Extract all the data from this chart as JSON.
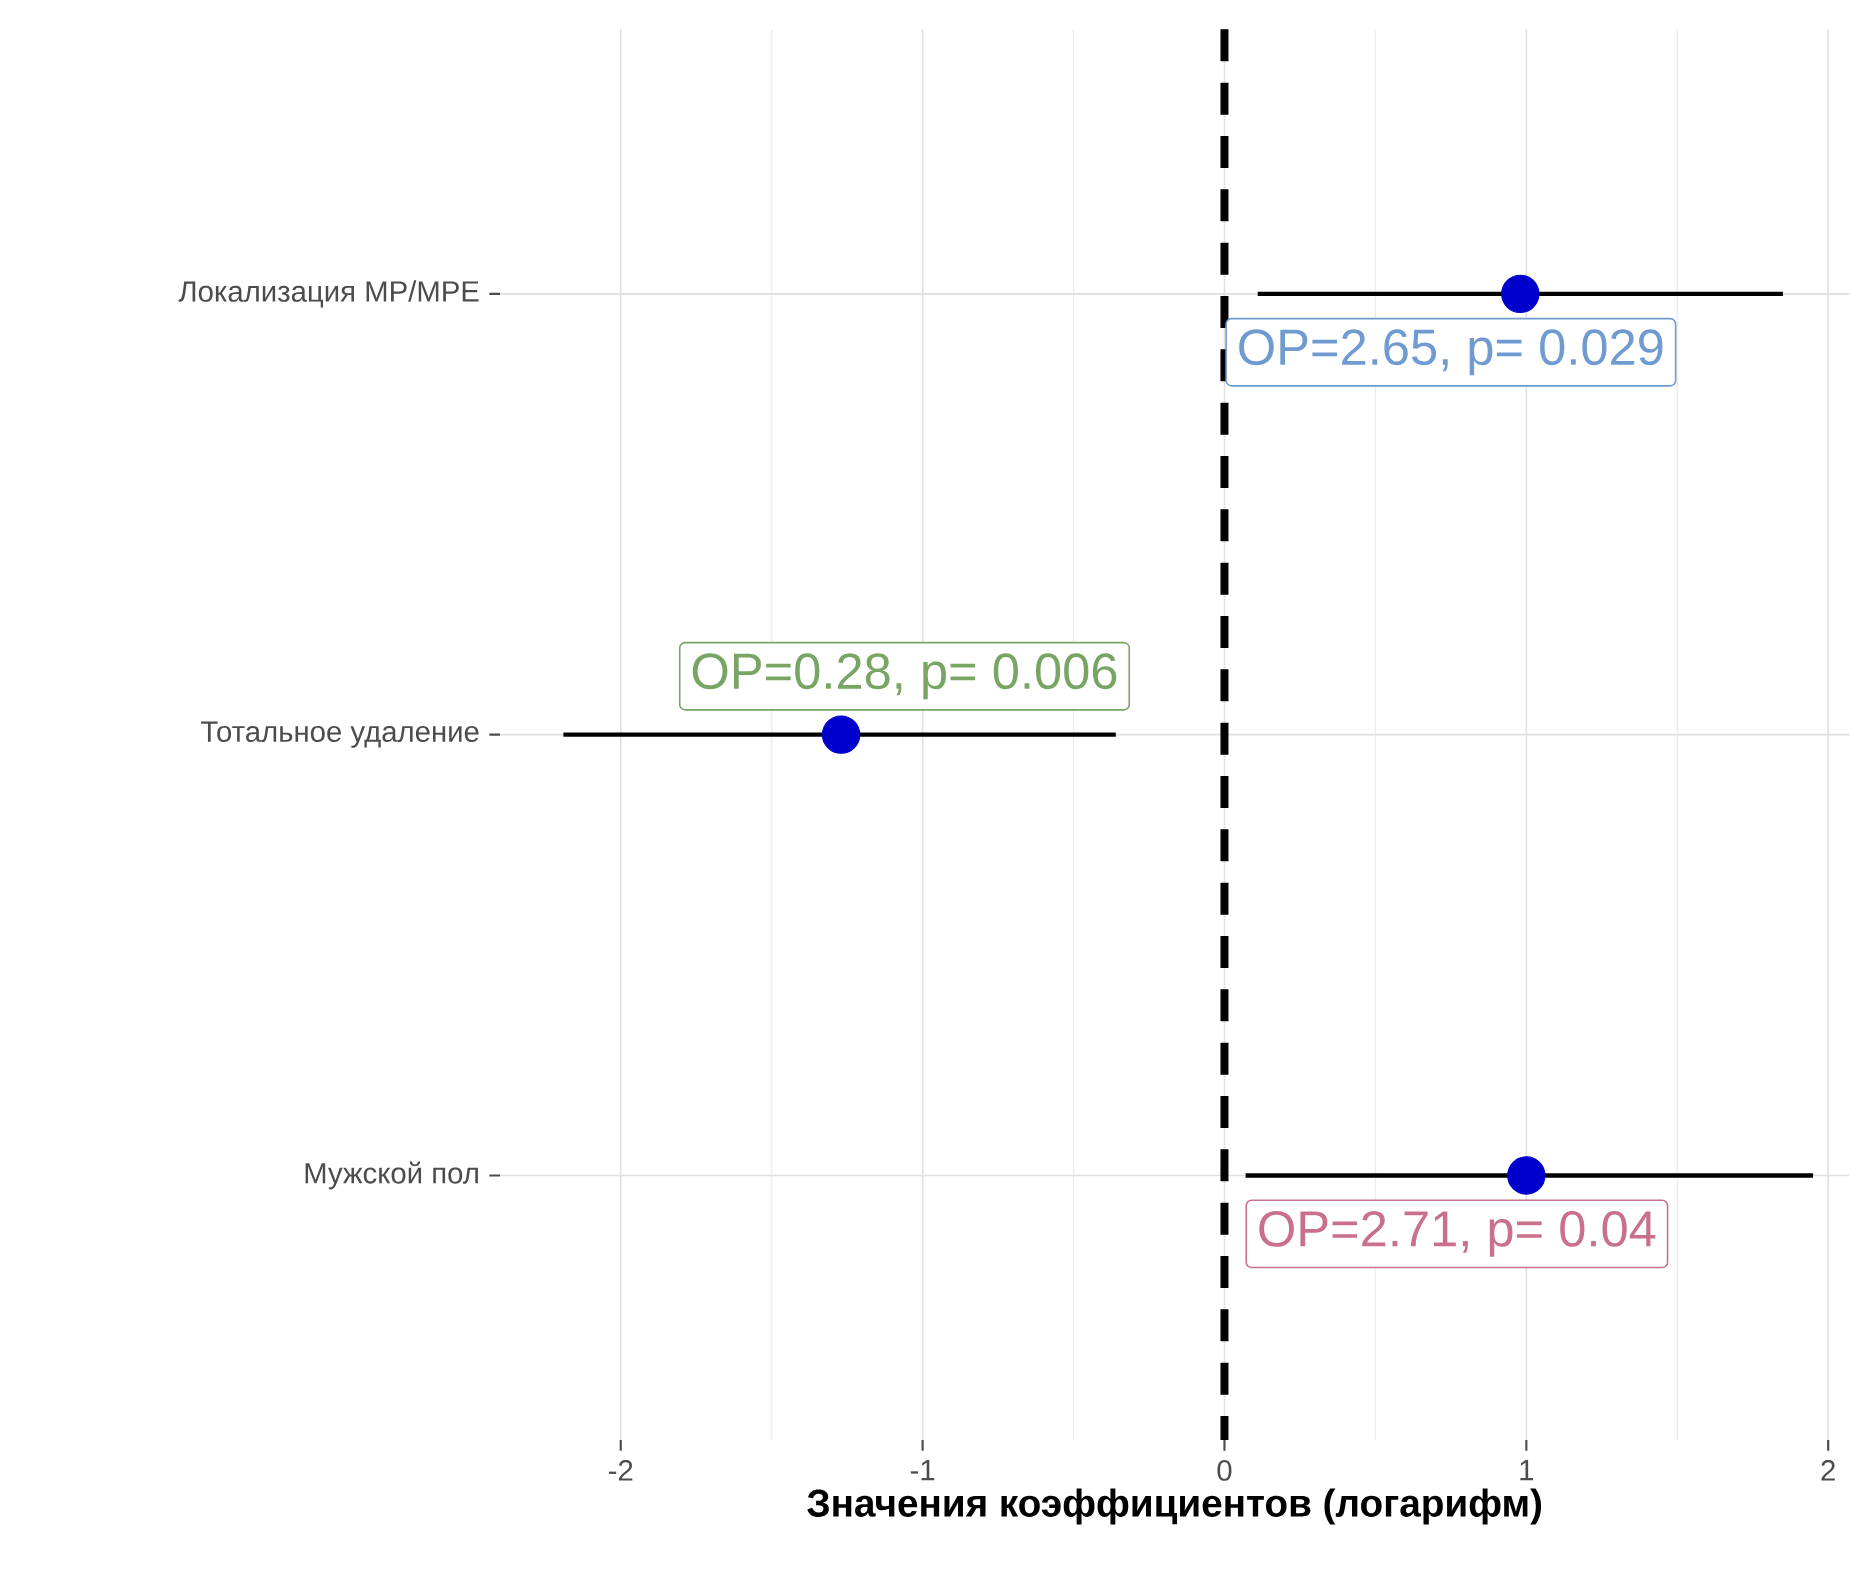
{
  "chart_data": {
    "type": "scatter",
    "orientation": "horizontal",
    "xlabel": "Значения коэффициентов (логарифм)",
    "categories": [
      "Локализация МР/МРЕ",
      "Тотальное удаление",
      "Мужской пол"
    ],
    "values": [
      0.98,
      -1.27,
      1.0
    ],
    "errors": [
      [
        0.11,
        1.85
      ],
      [
        -2.19,
        -0.36
      ],
      [
        0.07,
        1.95
      ]
    ],
    "color": "#0000cc",
    "grid": true,
    "xlim": [
      -2.4,
      2.07
    ],
    "xticks": [
      -2,
      -1,
      0,
      1,
      2
    ],
    "ref_lines": [
      {
        "axis": "x",
        "value": 0,
        "color": "#000000",
        "line_style": "dashed"
      }
    ],
    "annotations": [
      {
        "text": "OP=2.65, p= 0.029",
        "x": 0.75,
        "y": "Локализация МР/МРЕ"
      },
      {
        "text": "OP=0.28, p= 0.006",
        "x": -1.06,
        "y": "Тотальное удаление"
      },
      {
        "text": "OP=2.71, p= 0.04",
        "x": 0.77,
        "y": "Мужской пол"
      }
    ]
  }
}
